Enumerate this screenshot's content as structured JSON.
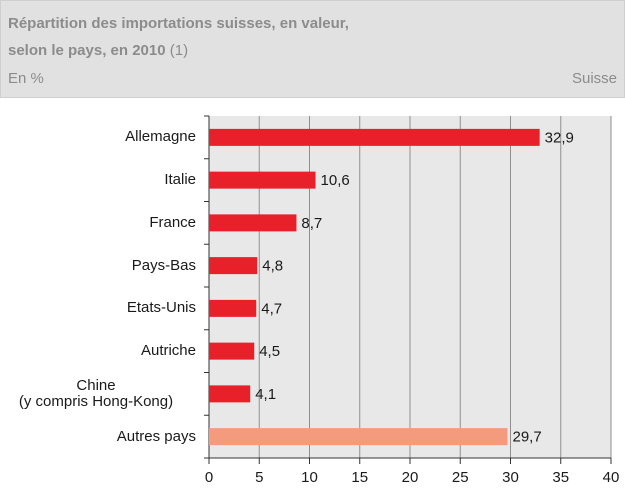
{
  "chart_data": {
    "type": "bar",
    "orientation": "horizontal",
    "title": [
      "Répartition des importations suisses, en valeur,",
      "selon le pays, en 2010"
    ],
    "title_note": "(1)",
    "unit": "En %",
    "region": "Suisse",
    "categories": [
      "Allemagne",
      "Italie",
      "France",
      "Pays-Bas",
      "Etats-Unis",
      "Autriche",
      "Chine\n(y compris Hong-Kong)",
      "Autres pays"
    ],
    "values": [
      32.9,
      10.6,
      8.7,
      4.8,
      4.7,
      4.5,
      4.1,
      29.7
    ],
    "value_labels": [
      "32,9",
      "10,6",
      "8,7",
      "4,8",
      "4,7",
      "4,5",
      "4,1",
      "29,7"
    ],
    "colors": [
      "#e8202a",
      "#e8202a",
      "#e8202a",
      "#e8202a",
      "#e8202a",
      "#e8202a",
      "#e8202a",
      "#f59b7d"
    ],
    "xlim": [
      0,
      40
    ],
    "xticks": [
      0,
      5,
      10,
      15,
      20,
      25,
      30,
      35,
      40
    ],
    "grid": true
  }
}
